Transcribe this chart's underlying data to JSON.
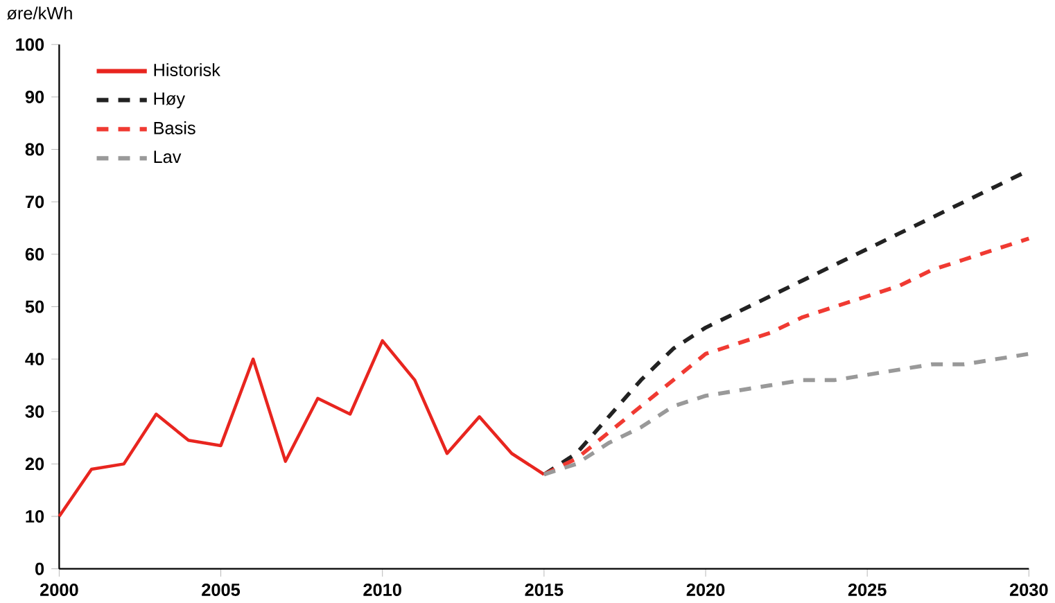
{
  "chart_data": {
    "type": "line",
    "ylabel": "øre/kWh",
    "xlim": [
      2000,
      2030
    ],
    "ylim": [
      0,
      100
    ],
    "xticks": [
      2000,
      2005,
      2010,
      2015,
      2020,
      2025,
      2030
    ],
    "yticks": [
      0,
      10,
      20,
      30,
      40,
      50,
      60,
      70,
      80,
      90,
      100
    ],
    "grid": false,
    "legend": "top left",
    "series": [
      {
        "name": "Historisk",
        "color": "#e8251f",
        "line_style": "solid",
        "x": [
          2000,
          2001,
          2002,
          2003,
          2004,
          2005,
          2006,
          2007,
          2008,
          2009,
          2010,
          2011,
          2012,
          2013,
          2014,
          2015
        ],
        "values": [
          10,
          19,
          20,
          29.5,
          24.5,
          23.5,
          40,
          20.5,
          32.5,
          29.5,
          43.5,
          36,
          22,
          29,
          22,
          18
        ]
      },
      {
        "name": "Høy",
        "color": "#222222",
        "line_style": "dashed",
        "x": [
          2015,
          2016,
          2017,
          2018,
          2019,
          2020,
          2021,
          2022,
          2023,
          2024,
          2025,
          2026,
          2027,
          2028,
          2029,
          2030
        ],
        "values": [
          18,
          22,
          29,
          36,
          42,
          46,
          49,
          52,
          55,
          58,
          61,
          64,
          67,
          70,
          73,
          76
        ]
      },
      {
        "name": "Basis",
        "color": "#f03a32",
        "line_style": "dashed",
        "x": [
          2015,
          2016,
          2017,
          2018,
          2019,
          2020,
          2021,
          2022,
          2023,
          2024,
          2025,
          2026,
          2027,
          2028,
          2029,
          2030
        ],
        "values": [
          18,
          21,
          26,
          31,
          36,
          41,
          43,
          45,
          48,
          50,
          52,
          54,
          57,
          59,
          61,
          63
        ]
      },
      {
        "name": "Lav",
        "color": "#999999",
        "line_style": "dashed",
        "x": [
          2015,
          2016,
          2017,
          2018,
          2019,
          2020,
          2021,
          2022,
          2023,
          2024,
          2025,
          2026,
          2027,
          2028,
          2029,
          2030
        ],
        "values": [
          18,
          20,
          24,
          27,
          31,
          33,
          34,
          35,
          36,
          36,
          37,
          38,
          39,
          39,
          40,
          41
        ]
      }
    ]
  }
}
